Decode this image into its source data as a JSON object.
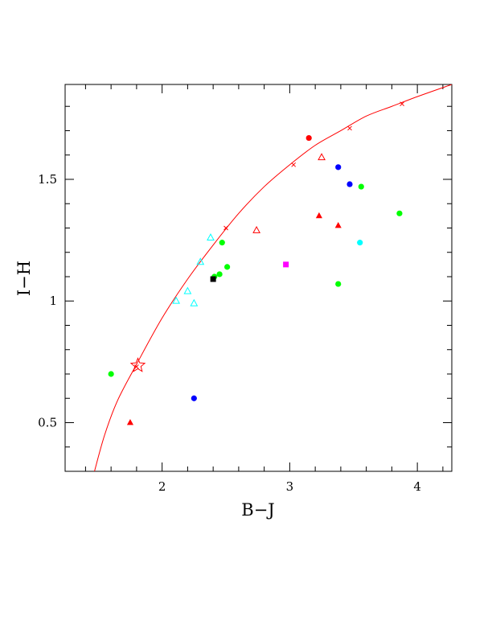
{
  "chart_data": {
    "type": "scatter",
    "title": "",
    "xlabel": "B−J",
    "ylabel": "I−H",
    "xlim": [
      1.24,
      4.27
    ],
    "ylim": [
      0.3,
      1.89
    ],
    "x_ticks": [
      2,
      3,
      4
    ],
    "x_tick_labels": [
      "2",
      "3",
      "4"
    ],
    "y_ticks": [
      0.5,
      1,
      1.5
    ],
    "y_tick_labels": [
      "0.5",
      "1",
      "1.5"
    ],
    "grid": false,
    "legend": null,
    "curve": {
      "color": "#ff0000",
      "points": [
        [
          1.47,
          0.3
        ],
        [
          1.55,
          0.45
        ],
        [
          1.65,
          0.59
        ],
        [
          1.8,
          0.74
        ],
        [
          2.0,
          0.93
        ],
        [
          2.2,
          1.09
        ],
        [
          2.4,
          1.23
        ],
        [
          2.6,
          1.36
        ],
        [
          2.8,
          1.47
        ],
        [
          3.0,
          1.56
        ],
        [
          3.2,
          1.64
        ],
        [
          3.4,
          1.7
        ],
        [
          3.6,
          1.76
        ],
        [
          3.8,
          1.8
        ],
        [
          4.0,
          1.84
        ],
        [
          4.27,
          1.89
        ]
      ]
    },
    "curve_markers": [
      [
        1.8,
        0.73
      ],
      [
        2.5,
        1.3
      ],
      [
        3.03,
        1.56
      ],
      [
        3.47,
        1.71
      ],
      [
        3.88,
        1.81
      ]
    ],
    "star_marker": {
      "x": 1.81,
      "y": 0.735,
      "color": "#ff0000"
    },
    "series": [
      {
        "marker": "circle",
        "color": "#00ff00",
        "points": [
          [
            1.6,
            0.7
          ],
          [
            2.41,
            1.1
          ],
          [
            2.45,
            1.11
          ],
          [
            2.47,
            1.24
          ],
          [
            2.51,
            1.14
          ],
          [
            3.38,
            1.07
          ],
          [
            3.56,
            1.47
          ],
          [
            3.86,
            1.36
          ]
        ]
      },
      {
        "marker": "circle",
        "color": "#0000ff",
        "points": [
          [
            2.25,
            0.6
          ],
          [
            3.38,
            1.55
          ],
          [
            3.47,
            1.48
          ]
        ]
      },
      {
        "marker": "circle",
        "color": "#ff0000",
        "points": [
          [
            3.15,
            1.67
          ]
        ]
      },
      {
        "marker": "circle",
        "color": "#00ffff",
        "points": [
          [
            3.55,
            1.24
          ]
        ]
      },
      {
        "marker": "triangle-filled",
        "color": "#ff0000",
        "points": [
          [
            1.75,
            0.5
          ],
          [
            3.23,
            1.35
          ],
          [
            3.38,
            1.31
          ]
        ]
      },
      {
        "marker": "triangle-open",
        "color": "#00ffff",
        "points": [
          [
            2.11,
            1.0
          ],
          [
            2.2,
            1.04
          ],
          [
            2.25,
            0.99
          ],
          [
            2.3,
            1.16
          ],
          [
            2.38,
            1.26
          ]
        ]
      },
      {
        "marker": "triangle-open",
        "color": "#ff0000",
        "points": [
          [
            2.74,
            1.29
          ],
          [
            3.25,
            1.59
          ]
        ]
      },
      {
        "marker": "square",
        "color": "#000000",
        "points": [
          [
            2.4,
            1.09
          ]
        ]
      },
      {
        "marker": "square",
        "color": "#ff00ff",
        "points": [
          [
            2.97,
            1.15
          ]
        ]
      }
    ]
  }
}
